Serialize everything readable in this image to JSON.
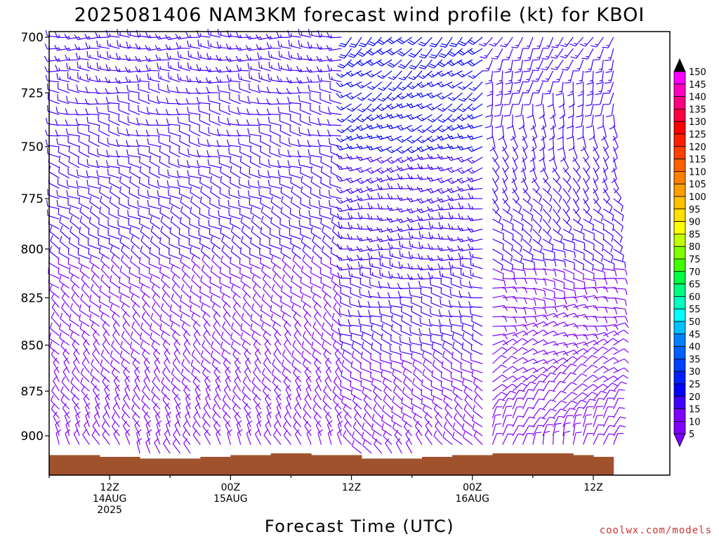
{
  "chart_data": {
    "type": "wind-barb-time-height",
    "title": "2025081406 NAM3KM forecast wind profile (kt) for KBOI",
    "xlabel": "Forecast Time (UTC)",
    "ylabel": "",
    "credit": "coolwx.com/models",
    "y_axis": {
      "scale": "log",
      "ylim": [
        700,
        920
      ],
      "ticks": [
        700,
        725,
        750,
        775,
        800,
        825,
        850,
        875,
        900
      ]
    },
    "x_axis": {
      "range_hours": [
        "2025-08-14 06Z",
        "2025-08-16 12Z"
      ],
      "tick_labels": [
        {
          "hour": "2025-08-14 12Z",
          "lines": [
            "12Z",
            "14AUG",
            "2025"
          ]
        },
        {
          "hour": "2025-08-15 00Z",
          "lines": [
            "00Z",
            "15AUG"
          ]
        },
        {
          "hour": "2025-08-15 12Z",
          "lines": [
            "12Z"
          ]
        },
        {
          "hour": "2025-08-16 00Z",
          "lines": [
            "00Z",
            "16AUG"
          ]
        },
        {
          "hour": "2025-08-16 12Z",
          "lines": [
            "12Z"
          ]
        }
      ]
    },
    "colorbar": {
      "units": "kt",
      "labels": [
        150,
        145,
        140,
        135,
        130,
        125,
        120,
        115,
        110,
        105,
        100,
        95,
        90,
        85,
        80,
        75,
        70,
        65,
        60,
        55,
        50,
        45,
        40,
        35,
        30,
        25,
        20,
        15,
        10,
        5
      ],
      "colors": [
        "#000000",
        "#ff00ff",
        "#ff00c0",
        "#ff0080",
        "#ff0040",
        "#ff0000",
        "#ff2000",
        "#ff4000",
        "#ff6000",
        "#ff8000",
        "#ffa000",
        "#ffc000",
        "#ffe000",
        "#ffff00",
        "#c0ff00",
        "#80ff00",
        "#40ff00",
        "#00ff40",
        "#00ff80",
        "#00ffc0",
        "#00ffff",
        "#00c0ff",
        "#0080ff",
        "#0060ff",
        "#0040ff",
        "#0020ff",
        "#0000ff",
        "#4000ff",
        "#8000ff",
        "#8000ff"
      ]
    },
    "terrain": {
      "color": "#a0522d",
      "segments": [
        {
          "from": "2025-08-14 06Z",
          "to": "2025-08-14 11Z",
          "top_hpa": 911
        },
        {
          "from": "2025-08-14 11Z",
          "to": "2025-08-14 15Z",
          "top_hpa": 912
        },
        {
          "from": "2025-08-14 15Z",
          "to": "2025-08-14 21Z",
          "top_hpa": 913
        },
        {
          "from": "2025-08-14 21Z",
          "to": "2025-08-15 00Z",
          "top_hpa": 912
        },
        {
          "from": "2025-08-15 00Z",
          "to": "2025-08-15 04Z",
          "top_hpa": 911
        },
        {
          "from": "2025-08-15 04Z",
          "to": "2025-08-15 08Z",
          "top_hpa": 910
        },
        {
          "from": "2025-08-15 08Z",
          "to": "2025-08-15 13Z",
          "top_hpa": 911
        },
        {
          "from": "2025-08-15 13Z",
          "to": "2025-08-15 19Z",
          "top_hpa": 913
        },
        {
          "from": "2025-08-15 19Z",
          "to": "2025-08-15 22Z",
          "top_hpa": 912
        },
        {
          "from": "2025-08-15 22Z",
          "to": "2025-08-16 02Z",
          "top_hpa": 911
        },
        {
          "from": "2025-08-16 02Z",
          "to": "2025-08-16 10Z",
          "top_hpa": 910
        },
        {
          "from": "2025-08-16 10Z",
          "to": "2025-08-16 12Z",
          "top_hpa": 911
        },
        {
          "from": "2025-08-16 12Z",
          "to": "2025-08-16 14Z",
          "top_hpa": 912
        }
      ]
    },
    "barb_levels_hpa": [
      700,
      705,
      710,
      715,
      720,
      725,
      730,
      735,
      740,
      745,
      750,
      755,
      760,
      765,
      770,
      775,
      780,
      785,
      790,
      795,
      800,
      805,
      810,
      815,
      820,
      825,
      830,
      835,
      840,
      845,
      850,
      855,
      860,
      865,
      870,
      875,
      880,
      885,
      890,
      895,
      900,
      905,
      910
    ],
    "wind_regimes": [
      {
        "from": "2025-08-14 06Z",
        "to": "2025-08-15 12Z",
        "upper_dir_deg": 270,
        "lower_dir_deg": 335,
        "upper_kt": 15,
        "lower_kt": 10
      },
      {
        "from": "2025-08-15 12Z",
        "to": "2025-08-16 02Z",
        "upper_dir_deg": 225,
        "lower_dir_deg": 320,
        "upper_kt": 20,
        "lower_kt": 10
      },
      {
        "from": "2025-08-16 02Z",
        "to": "2025-08-16 14Z",
        "upper_dir_deg": 210,
        "lower_dir_deg": 10,
        "upper_kt": 15,
        "lower_kt": 10
      }
    ]
  }
}
